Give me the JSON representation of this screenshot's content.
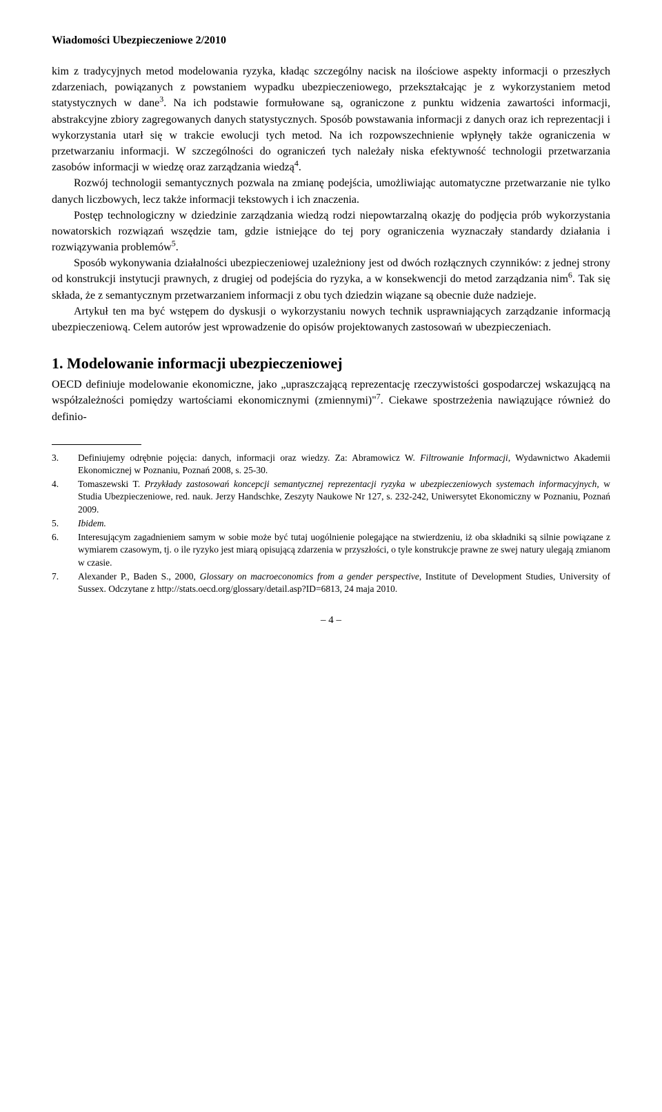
{
  "header": {
    "journal_title": "Wiadomości Ubezpieczeniowe 2/2010"
  },
  "body": {
    "para1": "kim z tradycyjnych metod modelowania ryzyka, kładąc szczególny nacisk na ilościowe aspekty informacji o przeszłych zdarzeniach, powiązanych z powstaniem wypadku ubezpieczeniowego, przekształcając je z wykorzystaniem metod statystycznych w dane",
    "para1_after_sup3": ". Na ich podstawie formułowane są, ograniczone z punktu widzenia zawartości informacji, abstrakcyjne zbiory zagregowanych danych statystycznych. Sposób powstawania informacji z danych oraz ich reprezentacji i wykorzystania utarł się w trakcie ewolucji tych metod. Na ich rozpowszechnienie wpłynęły także ograniczenia w przetwarzaniu informacji. W szczególności do ograniczeń tych należały niska efektywność technologii przetwarzania zasobów informacji w wiedzę oraz zarządzania wiedzą",
    "para1_after_sup4": ".",
    "para2": "Rozwój technologii semantycznych pozwala na zmianę podejścia, umożliwiając automatyczne przetwarzanie nie tylko danych liczbowych, lecz także informacji tekstowych i ich znaczenia.",
    "para3": "Postęp technologiczny w dziedzinie zarządzania wiedzą rodzi niepowtarzalną okazję do podjęcia prób wykorzystania nowatorskich rozwiązań wszędzie tam, gdzie istniejące do tej pory ograniczenia wyznaczały standardy działania i rozwiązywania problemów",
    "para3_after_sup5": ".",
    "para4": "Sposób wykonywania działalności ubezpieczeniowej uzależniony jest od dwóch rozłącznych czynników: z jednej strony od konstrukcji instytucji prawnych, z drugiej od podejścia do ryzyka, a w konsekwencji do metod zarządzania nim",
    "para4_after_sup6": ". Tak się składa, że z semantycznym przetwarzaniem informacji z obu tych dziedzin wiązane są obecnie duże nadzieje.",
    "para5": "Artykuł ten ma być wstępem do dyskusji o wykorzystaniu nowych technik usprawniających zarządzanie informacją ubezpieczeniową. Celem autorów jest wprowadzenie do opisów projektowanych zastosowań w ubezpieczeniach."
  },
  "section1": {
    "heading": "1. Modelowanie informacji ubezpieczeniowej",
    "text_before_sup7": "OECD definiuje modelowanie ekonomiczne, jako „upraszczającą reprezentację rzeczywistości gospodarczej wskazującą na współzależności pomiędzy wartościami ekonomicznymi (zmiennymi)\"",
    "text_after_sup7": ". Ciekawe spostrzeżenia nawiązujące również do definio-"
  },
  "footnotes": {
    "fn3_num": "3.",
    "fn3_a": "Definiujemy odrębnie pojęcia: danych, informacji oraz wiedzy. Za: Abramowicz W. ",
    "fn3_italic": "Filtrowanie Informacji",
    "fn3_b": ", Wydawnictwo Akademii Ekonomicznej w Poznaniu, Poznań 2008, s. 25-30.",
    "fn4_num": "4.",
    "fn4_a": "Tomaszewski T. ",
    "fn4_italic": "Przykłady zastosowań koncepcji semantycznej reprezentacji ryzyka w ubezpieczeniowych systemach informacyjnych,",
    "fn4_b": " w Studia Ubezpieczeniowe, red. nauk. Jerzy Handschke, Zeszyty Naukowe Nr 127, s. 232-242, Uniwersytet Ekonomiczny w Poznaniu,  Poznań 2009.",
    "fn5_num": "5.",
    "fn5_italic": "Ibidem.",
    "fn6_num": "6.",
    "fn6_text": "Interesującym zagadnieniem samym w sobie może być tutaj uogólnienie polegające na stwierdzeniu, iż oba składniki są silnie powiązane z wymiarem czasowym, tj. o ile ryzyko jest miarą opisującą zdarzenia w przyszłości, o tyle konstrukcje prawne ze swej natury ulegają zmianom w czasie.",
    "fn7_num": "7.",
    "fn7_a": "Alexander P., Baden S., 2000, ",
    "fn7_italic": "Glossary on macroeconomics from a gender perspective",
    "fn7_b": ", Institute of Development Studies, University of Sussex. Odczytane z http://stats.oecd.org/glossary/detail.asp?ID=6813, 24 maja 2010."
  },
  "page_number": "– 4 –"
}
